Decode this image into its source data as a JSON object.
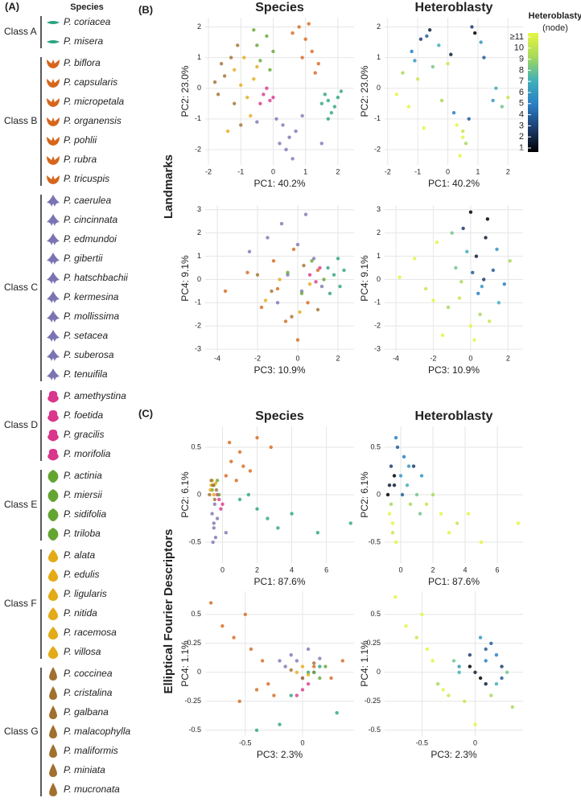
{
  "panel_a": {
    "label": "(A)",
    "header": "Species",
    "classes": [
      {
        "name": "Class A",
        "color": "#2ba380",
        "species": [
          "P. coriacea",
          "P. misera"
        ]
      },
      {
        "name": "Class B",
        "color": "#d6661c",
        "species": [
          "P. biflora",
          "P. capsularis",
          "P. micropetala",
          "P. organensis",
          "P. pohlii",
          "P. rubra",
          "P. tricuspis"
        ]
      },
      {
        "name": "Class C",
        "color": "#7b74b3",
        "species": [
          "P. caerulea",
          "P. cincinnata",
          "P. edmundoi",
          "P. gibertii",
          "P. hatschbachii",
          "P. kermesina",
          "P. mollissima",
          "P. setacea",
          "P. suberosa",
          "P. tenuifila"
        ]
      },
      {
        "name": "Class D",
        "color": "#d9368c",
        "species": [
          "P. amethystina",
          "P. foetida",
          "P. gracilis",
          "P. morifolia"
        ]
      },
      {
        "name": "Class E",
        "color": "#64a531",
        "species": [
          "P. actinia",
          "P. miersii",
          "P. sidifolia",
          "P. triloba"
        ]
      },
      {
        "name": "Class F",
        "color": "#e3ab17",
        "species": [
          "P. alata",
          "P. edulis",
          "P. ligularis",
          "P. nitida",
          "P. racemosa",
          "P. villosa"
        ]
      },
      {
        "name": "Class G",
        "color": "#a0712e",
        "species": [
          "P. coccinea",
          "P. cristalina",
          "P. galbana",
          "P. malacophylla",
          "P. maliformis",
          "P. miniata",
          "P. mucronata"
        ]
      }
    ]
  },
  "panel_b_label": "(B)",
  "panel_c_label": "(C)",
  "row_labels": [
    "Landmarks",
    "Elliptical Fourier Descriptors"
  ],
  "colorbar": {
    "title": "Heteroblasty",
    "subtitle": "(node)",
    "lim": [
      1,
      11
    ],
    "colors": [
      "#000000",
      "#1d3c6e",
      "#2a7fc4",
      "#3fb0b9",
      "#a7d95a",
      "#e5f542"
    ],
    "ticks": [
      {
        "value": 11,
        "label": "≥11"
      },
      10,
      9,
      8,
      7,
      6,
      5,
      4,
      3,
      2,
      1
    ]
  },
  "chart_data": [
    {
      "type": "scatter",
      "title": "Species",
      "xlabel": "PC1: 40.2%",
      "ylabel": "PC2: 23.0%",
      "xlim": [
        -2.1,
        2.5
      ],
      "xticks": [
        -2,
        -1,
        0,
        1,
        2
      ],
      "ylim": [
        -2.5,
        2.3
      ],
      "yticks": [
        -2,
        -1,
        0,
        1,
        2
      ],
      "grid": true,
      "series": [
        {
          "color": "#2ba380",
          "x": [
            1.7,
            1.9,
            1.6,
            2.0,
            1.8,
            1.5,
            2.1,
            1.7
          ],
          "values": [
            -0.4,
            -0.6,
            -0.2,
            -0.3,
            -0.8,
            -0.5,
            -0.1,
            -1.0
          ]
        },
        {
          "color": "#d6661c",
          "x": [
            0.8,
            1.0,
            1.2,
            0.6,
            1.4,
            0.9,
            1.1,
            1.3
          ],
          "values": [
            2.0,
            1.6,
            1.2,
            1.8,
            0.8,
            1.0,
            2.1,
            0.5
          ]
        },
        {
          "color": "#7b74b3",
          "x": [
            0.3,
            0.5,
            0.1,
            0.7,
            0.4,
            0.2,
            0.9,
            0.6,
            -0.5,
            1.5
          ],
          "values": [
            -1.2,
            -1.6,
            -1.0,
            -1.4,
            -2.0,
            -1.8,
            -0.9,
            -2.3,
            -1.1,
            -1.8
          ]
        },
        {
          "color": "#d9368c",
          "x": [
            -0.3,
            -0.1,
            -0.2,
            0.0,
            -0.4
          ],
          "values": [
            -0.2,
            -0.4,
            0.0,
            -0.3,
            -0.5
          ]
        },
        {
          "color": "#64a531",
          "x": [
            -0.5,
            -0.2,
            -0.4,
            0.0,
            -0.6,
            -0.1
          ],
          "values": [
            1.4,
            1.7,
            0.9,
            1.2,
            1.9,
            0.6
          ]
        },
        {
          "color": "#e3ab17",
          "x": [
            -0.9,
            -0.6,
            -1.2,
            -0.8,
            -1.0,
            -0.5,
            -1.4,
            -0.7
          ],
          "values": [
            1.0,
            0.3,
            0.6,
            -0.3,
            0.1,
            0.7,
            -1.4,
            -0.9
          ]
        },
        {
          "color": "#a0712e",
          "x": [
            -1.5,
            -1.3,
            -1.7,
            -1.1,
            -1.6,
            -1.2,
            -1.8,
            -1.0
          ],
          "values": [
            0.4,
            1.0,
            -0.2,
            1.4,
            0.8,
            -0.5,
            0.2,
            -1.2
          ]
        }
      ]
    },
    {
      "type": "heatscatter",
      "title": "Heteroblasty",
      "xlabel": "PC1: 40.2%",
      "ylabel": "PC2: 23.0%",
      "xlim": [
        -2.1,
        2.5
      ],
      "xticks": [
        -2,
        -1,
        0,
        1,
        2
      ],
      "ylim": [
        -2.5,
        2.3
      ],
      "yticks": [
        -2,
        -1,
        0,
        1,
        2
      ],
      "grid": true,
      "x": [
        -1.5,
        -1.2,
        -0.9,
        -0.6,
        -0.3,
        0,
        0.3,
        0.6,
        0.9,
        1.2,
        1.5,
        1.8,
        -1.7,
        -1.0,
        -0.5,
        0.2,
        0.5,
        0.8,
        1.1,
        -1.3,
        -0.8,
        -0.2,
        0.4,
        0.7,
        1.6,
        2.0,
        -1.1,
        0.1,
        0.5,
        -0.7
      ],
      "values": [
        0.5,
        1.2,
        1.6,
        1.9,
        1.4,
        0.8,
        -1.2,
        -1.8,
        1.8,
        1.0,
        -0.4,
        -0.6,
        -0.2,
        0.3,
        0.7,
        -0.8,
        -1.6,
        2.0,
        1.5,
        -0.6,
        -1.3,
        -0.4,
        -2.2,
        -1.0,
        0.0,
        -0.3,
        0.9,
        1.1,
        -1.4,
        1.7
      ],
      "node": [
        9,
        5,
        3,
        2,
        7,
        10,
        11,
        9,
        1,
        4,
        6,
        8,
        11,
        10,
        8,
        5,
        11,
        3,
        6,
        11,
        11,
        9,
        11,
        4,
        7,
        10,
        6,
        2,
        10,
        4
      ]
    },
    {
      "type": "scatter",
      "xlabel": "PC3: 10.9%",
      "ylabel": "PC4: 9.1%",
      "xlim": [
        -4.6,
        2.8
      ],
      "xticks": [
        -4,
        -2,
        0,
        2
      ],
      "ylim": [
        -3.1,
        3.2
      ],
      "yticks": [
        -3,
        -2,
        -1,
        0,
        1,
        2,
        3
      ],
      "grid": true,
      "series": [
        {
          "color": "#2ba380",
          "x": [
            1.5,
            1.8,
            2.1,
            2.3,
            1.6,
            2.0
          ],
          "values": [
            0.5,
            0.2,
            -0.3,
            0.4,
            -0.6,
            0.9
          ]
        },
        {
          "color": "#d6661c",
          "x": [
            -3.6,
            -2.5,
            -1.8,
            -1.2,
            -0.6,
            0,
            0.5,
            1.0,
            -1.0,
            -0.2
          ],
          "values": [
            -0.5,
            0.3,
            -1.2,
            0.8,
            -1.8,
            -2.6,
            -1.0,
            0.4,
            -0.4,
            1.3
          ]
        },
        {
          "color": "#7b74b3",
          "x": [
            -2.4,
            -1.5,
            -0.8,
            0,
            0.4,
            0.8,
            1.2,
            -0.5,
            0.2,
            -1.0
          ],
          "values": [
            1.2,
            1.8,
            2.4,
            1.5,
            2.8,
            0.9,
            -0.3,
            0.2,
            -0.5,
            -1.0
          ]
        },
        {
          "color": "#d9368c",
          "x": [
            0.6,
            0.9,
            1.1
          ],
          "values": [
            0.2,
            -0.1,
            0.5
          ]
        },
        {
          "color": "#64a531",
          "x": [
            -0.5,
            0.2,
            0.7,
            1.3
          ],
          "values": [
            0.3,
            -0.6,
            0.8,
            0.0
          ]
        },
        {
          "color": "#e3ab17",
          "x": [
            -1.6,
            -0.9,
            0.1,
            0.6
          ],
          "values": [
            -0.9,
            0.0,
            -1.4,
            -0.2
          ]
        },
        {
          "color": "#a0712e",
          "x": [
            -2.0,
            -1.3,
            -0.3,
            0.3,
            1.0
          ],
          "values": [
            0.2,
            -0.5,
            -1.6,
            0.6,
            -1.3
          ]
        }
      ]
    },
    {
      "type": "heatscatter",
      "xlabel": "PC3: 10.9%",
      "ylabel": "PC4: 9.1%",
      "xlim": [
        -4.6,
        2.8
      ],
      "xticks": [
        -4,
        -2,
        0,
        2
      ],
      "ylim": [
        -3.1,
        3.2
      ],
      "yticks": [
        -3,
        -2,
        -1,
        0,
        1,
        2,
        3
      ],
      "grid": true,
      "x": [
        -3.8,
        -3.0,
        -2.4,
        -1.8,
        -1.2,
        -0.8,
        -0.4,
        0,
        0.3,
        0.6,
        0.9,
        1.2,
        1.5,
        1.8,
        2.1,
        -1.5,
        -0.6,
        0.1,
        0.5,
        0.8,
        -0.2,
        0.4,
        1.0,
        -1.0,
        0.2,
        0.7,
        -2.0,
        1.4,
        0,
        -0.5
      ],
      "values": [
        0.1,
        0.9,
        -0.4,
        1.6,
        -1.2,
        0.5,
        2.2,
        -2.0,
        1.0,
        -0.3,
        2.6,
        0.4,
        -1.0,
        -0.2,
        0.8,
        -2.4,
        -0.8,
        0.3,
        -1.5,
        1.8,
        1.2,
        -0.6,
        -1.8,
        2.0,
        -2.6,
        0.0,
        -0.9,
        1.3,
        2.9,
        -0.1
      ],
      "node": [
        11,
        11,
        10,
        11,
        9,
        8,
        3,
        11,
        2,
        6,
        1,
        4,
        7,
        5,
        9,
        11,
        10,
        4,
        9,
        2,
        7,
        5,
        10,
        8,
        11,
        3,
        11,
        6,
        1,
        9
      ]
    },
    {
      "type": "scatter",
      "title": "Species",
      "xlabel": "PC1: 87.6%",
      "ylabel": "PC2: 6.1%",
      "xlim": [
        -1,
        7.6
      ],
      "xticks": [
        0,
        2,
        4,
        6
      ],
      "ylim": [
        -0.72,
        0.72
      ],
      "yticks": [
        -0.5,
        0,
        0.5
      ],
      "grid": true,
      "series": [
        {
          "color": "#2ba380",
          "x": [
            1.0,
            1.5,
            2.0,
            2.6,
            3.2,
            4.0,
            5.5,
            7.4
          ],
          "values": [
            -0.05,
            0.0,
            -0.15,
            -0.25,
            -0.35,
            -0.2,
            -0.4,
            -0.3
          ]
        },
        {
          "color": "#d6661c",
          "x": [
            0.2,
            0.5,
            0.8,
            1.2,
            1.6,
            2.0,
            0.4,
            1.0,
            2.8
          ],
          "values": [
            0.2,
            0.35,
            0.15,
            0.3,
            0.25,
            0.6,
            0.55,
            0.45,
            0.5
          ]
        },
        {
          "color": "#7b74b3",
          "x": [
            -0.6,
            -0.5,
            -0.4,
            -0.55,
            -0.45,
            -0.5,
            -0.3,
            0.2
          ],
          "values": [
            -0.2,
            -0.35,
            -0.45,
            -0.5,
            -0.1,
            -0.3,
            -0.25,
            -0.4
          ]
        },
        {
          "color": "#d9368c",
          "x": [
            -0.2,
            -0.1,
            -0.3,
            0.0
          ],
          "values": [
            -0.05,
            -0.15,
            0.0,
            -0.1
          ]
        },
        {
          "color": "#64a531",
          "x": [
            -0.5,
            -0.3,
            -0.6,
            -0.2
          ],
          "values": [
            0.1,
            0.15,
            0.05,
            0.0
          ]
        },
        {
          "color": "#e3ab17",
          "x": [
            -0.7,
            -0.6,
            -0.5,
            -0.65,
            -0.4
          ],
          "values": [
            0.05,
            0.15,
            0.0,
            0.1,
            0.12
          ]
        },
        {
          "color": "#a0712e",
          "x": [
            -0.75,
            -0.55,
            -0.45,
            -0.65,
            -0.35
          ],
          "values": [
            0.0,
            0.1,
            -0.05,
            0.15,
            0.05
          ]
        }
      ]
    },
    {
      "type": "heatscatter",
      "title": "Heteroblasty",
      "xlabel": "PC1: 87.6%",
      "ylabel": "PC2: 6.1%",
      "xlim": [
        -1,
        7.6
      ],
      "xticks": [
        0,
        2,
        4,
        6
      ],
      "ylim": [
        -0.72,
        0.72
      ],
      "yticks": [
        -0.5,
        0,
        0.5
      ],
      "grid": true,
      "x": [
        -0.8,
        -0.7,
        -0.6,
        -0.5,
        -0.4,
        -0.3,
        -0.2,
        0,
        0.2,
        0.4,
        0.6,
        0.8,
        1.0,
        1.3,
        1.6,
        2.0,
        2.5,
        3.0,
        3.5,
        4.2,
        5.0,
        7.3,
        -0.7,
        -0.5,
        -0.3,
        -0.6,
        0.1,
        0.5,
        1.2,
        -0.4
      ],
      "values": [
        0.0,
        -0.2,
        0.3,
        -0.4,
        0.1,
        -0.5,
        0.5,
        0.2,
        0.4,
        0.1,
        -0.1,
        0.3,
        0.0,
        0.2,
        -0.1,
        0.0,
        -0.2,
        -0.4,
        -0.3,
        -0.2,
        -0.5,
        -0.3,
        0.1,
        -0.3,
        0.6,
        -0.1,
        0.0,
        0.3,
        -0.2,
        0.2
      ],
      "node": [
        1,
        11,
        3,
        10,
        2,
        11,
        4,
        6,
        5,
        7,
        9,
        3,
        8,
        6,
        10,
        9,
        11,
        11,
        10,
        11,
        11,
        11,
        2,
        11,
        5,
        9,
        4,
        6,
        8,
        1
      ]
    },
    {
      "type": "scatter",
      "xlabel": "PC3: 2.3%",
      "ylabel": "PC4: 1.1%",
      "xlim": [
        -0.85,
        0.45
      ],
      "xticks": [
        -0.5,
        0
      ],
      "ylim": [
        -0.55,
        0.7
      ],
      "yticks": [
        -0.5,
        -0.25,
        0,
        0.25,
        0.5
      ],
      "grid": true,
      "series": [
        {
          "color": "#2ba380",
          "x": [
            0.05,
            0.15,
            -0.1,
            0.3,
            -0.4,
            -0.2
          ],
          "values": [
            0.0,
            0.05,
            -0.2,
            -0.35,
            -0.5,
            -0.45
          ]
        },
        {
          "color": "#d6661c",
          "x": [
            -0.8,
            -0.7,
            -0.6,
            -0.5,
            -0.45,
            -0.35,
            -0.3,
            -0.25,
            0.1,
            0.25,
            0.35,
            -0.55,
            -0.4
          ],
          "values": [
            0.6,
            0.4,
            0.3,
            0.5,
            0.2,
            0.1,
            -0.1,
            -0.2,
            0.05,
            -0.05,
            0.1,
            -0.25,
            -0.15
          ]
        },
        {
          "color": "#7b74b3",
          "x": [
            -0.15,
            -0.1,
            -0.05,
            0,
            0.05,
            0.1,
            -0.2,
            0.15
          ],
          "values": [
            0.05,
            0.15,
            0.1,
            -0.05,
            0.2,
            0.0,
            0.1,
            0.12
          ]
        },
        {
          "color": "#d9368c",
          "x": [
            0.0,
            0.05,
            -0.05
          ],
          "values": [
            -0.15,
            -0.1,
            -0.2
          ]
        },
        {
          "color": "#64a531",
          "x": [
            0.1,
            0.15,
            0.2
          ],
          "values": [
            0.0,
            -0.05,
            0.05
          ]
        },
        {
          "color": "#e3ab17",
          "x": [
            -0.05,
            0.0,
            0.05
          ],
          "values": [
            0.0,
            0.05,
            -0.02
          ]
        },
        {
          "color": "#a0712e",
          "x": [
            -0.1,
            0.0,
            0.1
          ],
          "values": [
            0.02,
            -0.05,
            0.08
          ]
        }
      ]
    },
    {
      "type": "heatscatter",
      "xlabel": "PC3: 2.3%",
      "ylabel": "PC4: 1.1%",
      "xlim": [
        -0.85,
        0.45
      ],
      "xticks": [
        -0.5,
        0
      ],
      "ylim": [
        -0.55,
        0.7
      ],
      "yticks": [
        -0.5,
        -0.25,
        0,
        0.25,
        0.5
      ],
      "grid": true,
      "x": [
        -0.75,
        -0.65,
        -0.55,
        -0.45,
        -0.35,
        -0.25,
        -0.15,
        -0.05,
        0,
        0.05,
        0.1,
        0.15,
        0.2,
        0.25,
        0.3,
        0.35,
        -0.1,
        0,
        0.1,
        -0.2,
        0.05,
        -0.3,
        -0.5,
        -0.4,
        0.15,
        0.2,
        -0.05,
        0.1,
        -0.15,
        0.25
      ],
      "values": [
        0.65,
        0.4,
        0.3,
        0.2,
        -0.1,
        -0.2,
        0.05,
        0.15,
        0.0,
        -0.05,
        0.1,
        0.25,
        -0.1,
        0.05,
        0.0,
        -0.3,
        -0.25,
        -0.45,
        0.2,
        0.1,
        0.3,
        -0.15,
        0.5,
        0.1,
        -0.2,
        0.15,
        0.05,
        -0.1,
        0.0,
        -0.05
      ],
      "node": [
        11,
        11,
        10,
        11,
        9,
        10,
        6,
        3,
        2,
        1,
        5,
        4,
        7,
        3,
        8,
        9,
        10,
        11,
        4,
        8,
        6,
        11,
        11,
        11,
        9,
        5,
        1,
        2,
        7,
        4
      ]
    }
  ]
}
